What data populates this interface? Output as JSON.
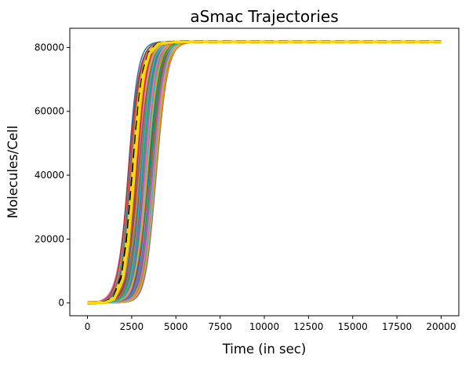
{
  "chart_data": {
    "type": "line",
    "title": "aSmac Trajectories",
    "xlabel": "Time (in sec)",
    "ylabel": "Molecules/Cell",
    "xlim": [
      -1000,
      21000
    ],
    "ylim": [
      -4000,
      86000
    ],
    "xticks": [
      0,
      2500,
      5000,
      7500,
      10000,
      12500,
      15000,
      17500,
      20000
    ],
    "yticks": [
      0,
      20000,
      40000,
      60000,
      80000
    ],
    "grid": false,
    "legend": "none",
    "plateau": 81800,
    "trajectory_sigmoid": {
      "count": 70,
      "midpoint_min": 2300,
      "midpoint_max": 3900,
      "rise_width": 310
    },
    "series": [
      {
        "role": "mean",
        "x": [
          0,
          1000,
          1500,
          2000,
          2300,
          2600,
          2800,
          3000,
          3200,
          3500,
          4000,
          5000,
          6000,
          8000,
          12000,
          16000,
          20000
        ],
        "y": [
          0,
          200,
          1500,
          9000,
          22000,
          42000,
          55000,
          66000,
          73000,
          78500,
          81200,
          81700,
          81800,
          81800,
          81800,
          81800,
          81800
        ],
        "color": "#000000",
        "dash": true
      },
      {
        "role": "median",
        "x": [
          0,
          1000,
          1500,
          2000,
          2300,
          2600,
          2800,
          3000,
          3200,
          3500,
          4000,
          5000,
          6000,
          8000,
          12000,
          16000,
          20000
        ],
        "y": [
          0,
          150,
          1200,
          7500,
          19000,
          38000,
          52000,
          64000,
          72000,
          78000,
          81100,
          81700,
          81800,
          81800,
          81800,
          81800,
          81800
        ],
        "color": "#ffd700",
        "dash": false
      }
    ],
    "palette": [
      "#1f77b4",
      "#ff7f0e",
      "#2ca02c",
      "#d62728",
      "#9467bd",
      "#8c564b",
      "#e377c2",
      "#7f7f7f",
      "#bcbd22",
      "#17becf"
    ]
  }
}
